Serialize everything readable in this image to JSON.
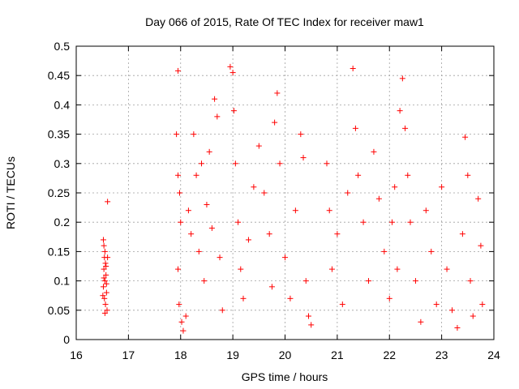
{
  "chart_data": {
    "type": "scatter",
    "title": "Day 066 of 2015, Rate Of TEC Index for receiver maw1",
    "xlabel": "GPS time / hours",
    "ylabel": "ROTI / TECUs",
    "xlim": [
      16,
      24
    ],
    "ylim": [
      0,
      0.5
    ],
    "x_ticks": [
      "16",
      "17",
      "18",
      "19",
      "20",
      "21",
      "22",
      "23",
      "24"
    ],
    "y_ticks": [
      "0",
      "0.05",
      "0.1",
      "0.15",
      "0.2",
      "0.25",
      "0.3",
      "0.35",
      "0.4",
      "0.45",
      "0.5"
    ],
    "grid": true,
    "marker": "plus",
    "color": "#ff0000",
    "series": [
      {
        "name": "maw1",
        "clusters": [
          {
            "x_start": 16.5,
            "x_end": 16.62,
            "points": [
              [
                16.52,
                0.17
              ],
              [
                16.53,
                0.16
              ],
              [
                16.55,
                0.15
              ],
              [
                16.54,
                0.14
              ],
              [
                16.56,
                0.13
              ],
              [
                16.53,
                0.12
              ],
              [
                16.57,
                0.11
              ],
              [
                16.55,
                0.1
              ],
              [
                16.52,
                0.09
              ],
              [
                16.58,
                0.08
              ],
              [
                16.54,
                0.07
              ],
              [
                16.56,
                0.06
              ],
              [
                16.59,
                0.05
              ],
              [
                16.55,
                0.045
              ],
              [
                16.6,
                0.235
              ],
              [
                16.57,
                0.125
              ],
              [
                16.53,
                0.105
              ],
              [
                16.6,
                0.14
              ],
              [
                16.51,
                0.075
              ],
              [
                16.58,
                0.095
              ]
            ]
          },
          {
            "x_start": 17.9,
            "x_end": 18.8,
            "points": [
              [
                17.95,
                0.458
              ],
              [
                17.92,
                0.35
              ],
              [
                17.95,
                0.28
              ],
              [
                17.98,
                0.25
              ],
              [
                18.0,
                0.2
              ],
              [
                17.95,
                0.12
              ],
              [
                17.97,
                0.06
              ],
              [
                18.02,
                0.03
              ],
              [
                18.05,
                0.015
              ],
              [
                18.1,
                0.04
              ],
              [
                18.15,
                0.22
              ],
              [
                18.2,
                0.18
              ],
              [
                18.25,
                0.35
              ],
              [
                18.3,
                0.28
              ],
              [
                18.35,
                0.15
              ],
              [
                18.4,
                0.3
              ],
              [
                18.45,
                0.1
              ],
              [
                18.5,
                0.23
              ],
              [
                18.55,
                0.32
              ],
              [
                18.6,
                0.19
              ],
              [
                18.65,
                0.41
              ],
              [
                18.7,
                0.38
              ],
              [
                18.75,
                0.14
              ],
              [
                18.8,
                0.05
              ]
            ]
          },
          {
            "x_start": 18.8,
            "x_end": 20.6,
            "points": [
              [
                18.95,
                0.465
              ],
              [
                19.0,
                0.455
              ],
              [
                19.02,
                0.39
              ],
              [
                19.05,
                0.3
              ],
              [
                19.1,
                0.2
              ],
              [
                19.15,
                0.12
              ],
              [
                19.2,
                0.07
              ],
              [
                19.3,
                0.17
              ],
              [
                19.4,
                0.26
              ],
              [
                19.5,
                0.33
              ],
              [
                19.6,
                0.25
              ],
              [
                19.7,
                0.18
              ],
              [
                19.75,
                0.09
              ],
              [
                19.8,
                0.37
              ],
              [
                19.85,
                0.42
              ],
              [
                19.9,
                0.3
              ],
              [
                20.0,
                0.14
              ],
              [
                20.1,
                0.07
              ],
              [
                20.2,
                0.22
              ],
              [
                20.3,
                0.35
              ],
              [
                20.35,
                0.31
              ],
              [
                20.4,
                0.1
              ],
              [
                20.45,
                0.04
              ],
              [
                20.5,
                0.025
              ]
            ]
          },
          {
            "x_start": 20.8,
            "x_end": 22.2,
            "points": [
              [
                20.8,
                0.3
              ],
              [
                20.85,
                0.22
              ],
              [
                20.9,
                0.12
              ],
              [
                21.0,
                0.18
              ],
              [
                21.1,
                0.06
              ],
              [
                21.2,
                0.25
              ],
              [
                21.3,
                0.462
              ],
              [
                21.35,
                0.36
              ],
              [
                21.4,
                0.28
              ],
              [
                21.5,
                0.2
              ],
              [
                21.6,
                0.1
              ],
              [
                21.7,
                0.32
              ],
              [
                21.8,
                0.24
              ],
              [
                21.9,
                0.15
              ],
              [
                22.0,
                0.07
              ],
              [
                22.05,
                0.2
              ],
              [
                22.1,
                0.26
              ],
              [
                22.15,
                0.12
              ]
            ]
          },
          {
            "x_start": 22.2,
            "x_end": 23.8,
            "points": [
              [
                22.2,
                0.39
              ],
              [
                22.25,
                0.445
              ],
              [
                22.3,
                0.36
              ],
              [
                22.35,
                0.28
              ],
              [
                22.4,
                0.2
              ],
              [
                22.5,
                0.1
              ],
              [
                22.6,
                0.03
              ],
              [
                22.7,
                0.22
              ],
              [
                22.8,
                0.15
              ],
              [
                22.9,
                0.06
              ],
              [
                23.0,
                0.26
              ],
              [
                23.1,
                0.12
              ],
              [
                23.2,
                0.05
              ],
              [
                23.3,
                0.02
              ],
              [
                23.4,
                0.18
              ],
              [
                23.45,
                0.345
              ],
              [
                23.5,
                0.28
              ],
              [
                23.55,
                0.1
              ],
              [
                23.6,
                0.04
              ],
              [
                23.7,
                0.24
              ],
              [
                23.75,
                0.16
              ],
              [
                23.78,
                0.06
              ]
            ]
          }
        ]
      }
    ]
  }
}
